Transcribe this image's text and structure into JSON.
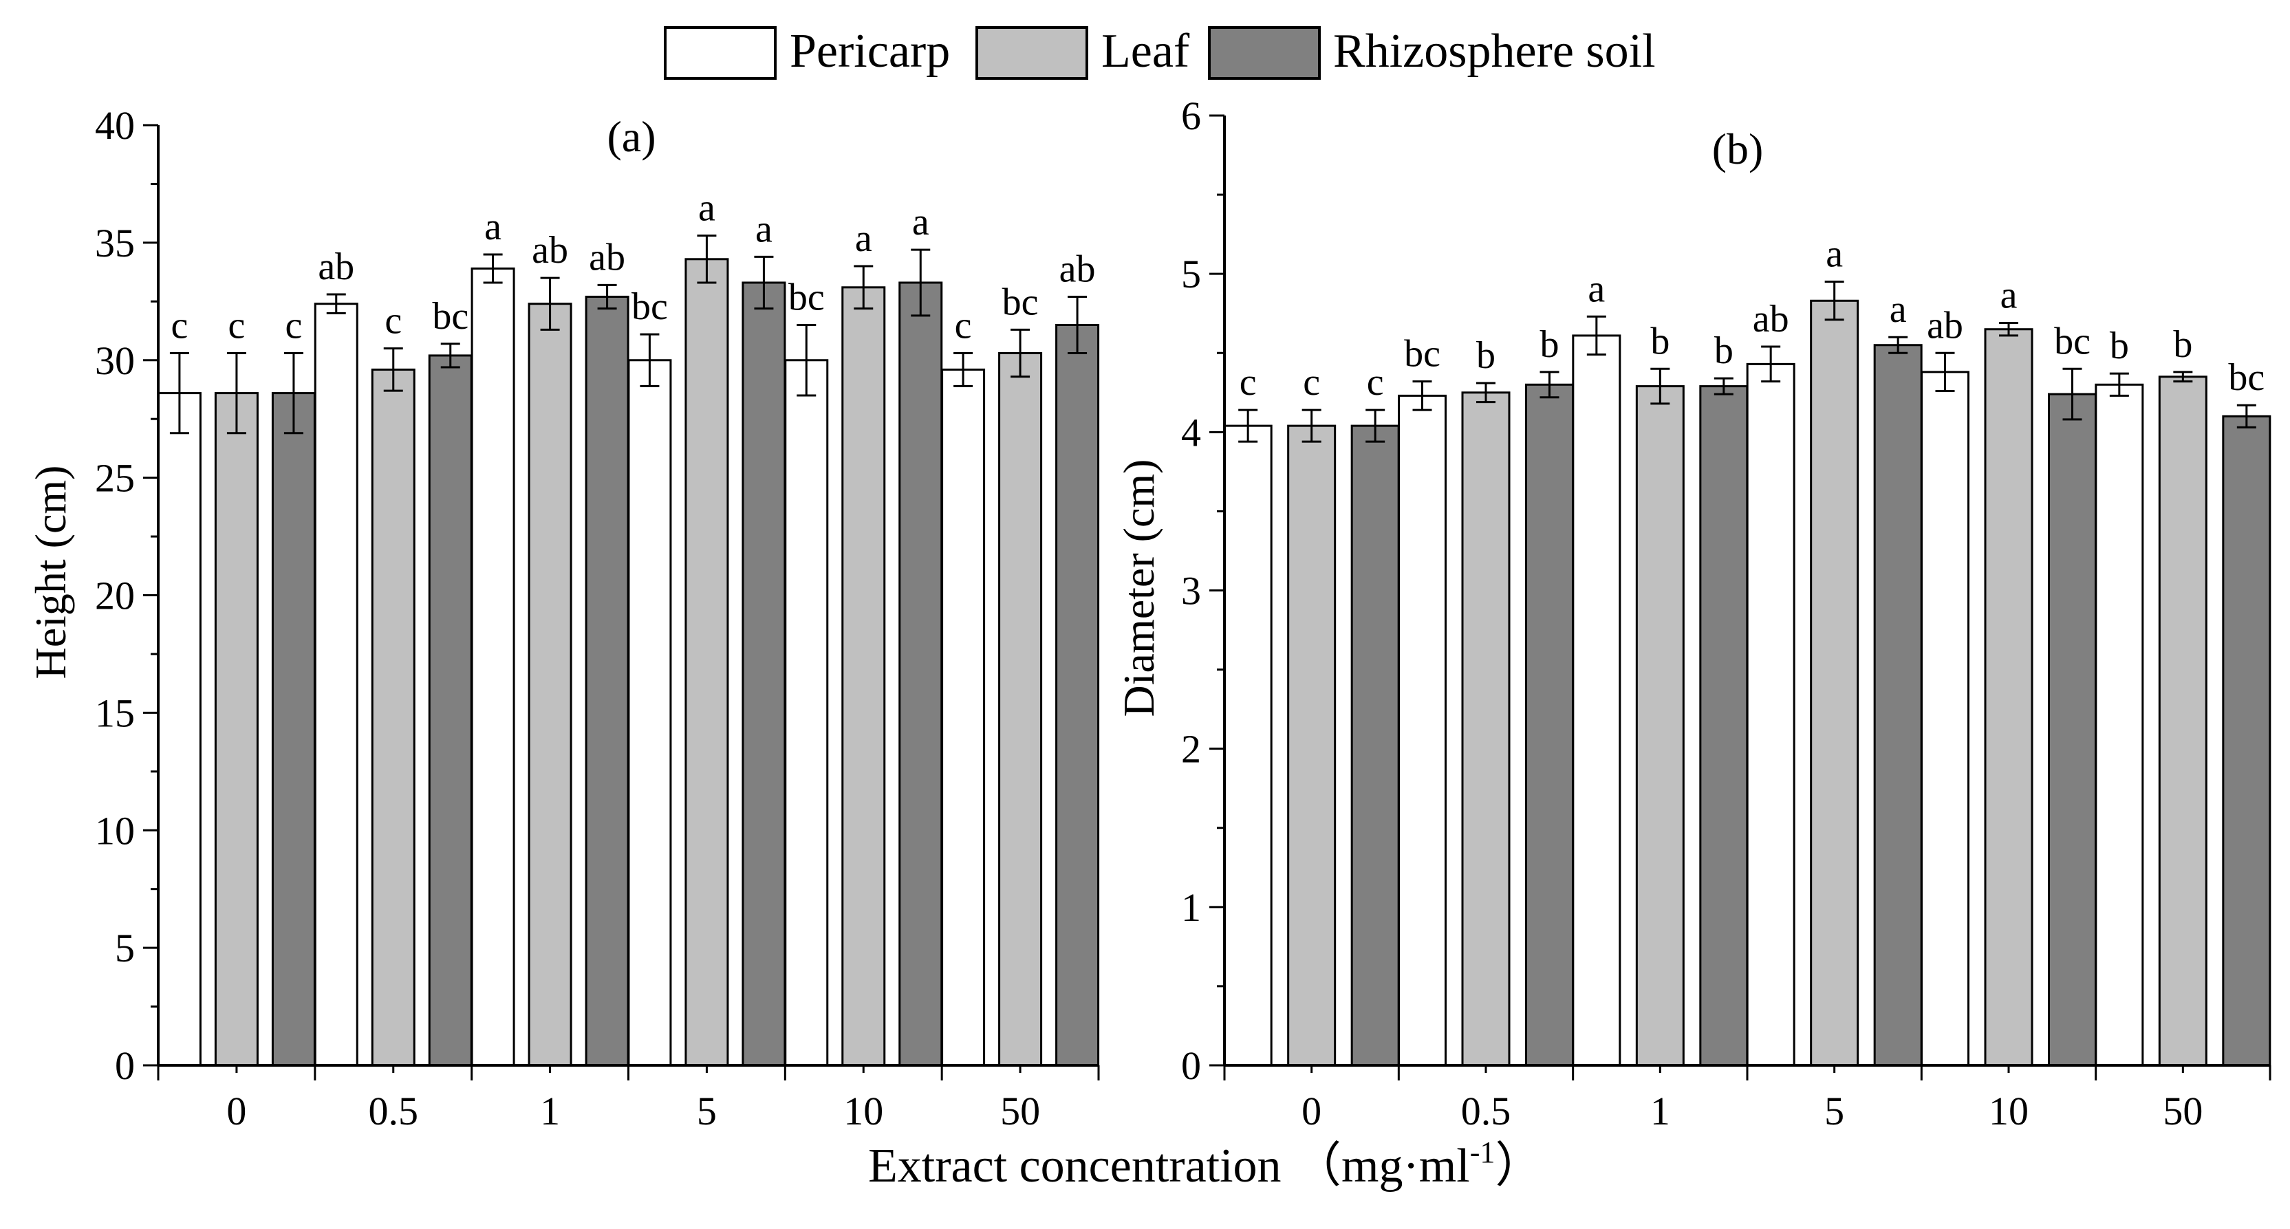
{
  "xlabel": "Extract concentration （mg·ml",
  "xlabel_sup": "-1",
  "xlabel_close": "）",
  "legend": {
    "placement": "top-center",
    "items": [
      {
        "name": "Pericarp",
        "color": "#ffffff"
      },
      {
        "name": "Leaf",
        "color": "#c0c0c0"
      },
      {
        "name": "Rhizosphere soil",
        "color": "#808080"
      }
    ]
  },
  "chart_data": [
    {
      "type": "bar",
      "title": "(a)",
      "xlabel": "Extract concentration (mg·ml-1)",
      "ylabel": "Height (cm)",
      "categories": [
        "0",
        "0.5",
        "1",
        "5",
        "10",
        "50"
      ],
      "ylim": [
        0,
        40
      ],
      "yticks": [
        "0",
        "5",
        "10",
        "15",
        "20",
        "25",
        "30",
        "35",
        "40"
      ],
      "series": [
        {
          "name": "Pericarp",
          "color": "#ffffff",
          "values": [
            28.6,
            32.4,
            33.9,
            30.0,
            30.0,
            29.6
          ],
          "errors": [
            1.7,
            0.4,
            0.6,
            1.1,
            1.5,
            0.7
          ],
          "labels": [
            "c",
            "ab",
            "a",
            "bc",
            "bc",
            "c"
          ]
        },
        {
          "name": "Leaf",
          "color": "#c0c0c0",
          "values": [
            28.6,
            29.6,
            32.4,
            34.3,
            33.1,
            30.3
          ],
          "errors": [
            1.7,
            0.9,
            1.1,
            1.0,
            0.9,
            1.0
          ],
          "labels": [
            "c",
            "c",
            "ab",
            "a",
            "a",
            "bc"
          ]
        },
        {
          "name": "Rhizosphere soil",
          "color": "#808080",
          "values": [
            28.6,
            30.2,
            32.7,
            33.3,
            33.3,
            31.5
          ],
          "errors": [
            1.7,
            0.5,
            0.5,
            1.1,
            1.4,
            1.2
          ],
          "labels": [
            "c",
            "bc",
            "ab",
            "a",
            "a",
            "ab"
          ]
        }
      ]
    },
    {
      "type": "bar",
      "title": "(b)",
      "xlabel": "Extract concentration (mg·ml-1)",
      "ylabel": "Diameter (cm)",
      "categories": [
        "0",
        "0.5",
        "1",
        "5",
        "10",
        "50"
      ],
      "ylim": [
        0,
        6
      ],
      "yticks": [
        "0",
        "1",
        "2",
        "3",
        "4",
        "5",
        "6"
      ],
      "series": [
        {
          "name": "Pericarp",
          "color": "#ffffff",
          "values": [
            4.04,
            4.23,
            4.61,
            4.43,
            4.38,
            4.3
          ],
          "errors": [
            0.1,
            0.09,
            0.12,
            0.11,
            0.12,
            0.07
          ],
          "labels": [
            "c",
            "bc",
            "a",
            "ab",
            "ab",
            "b"
          ]
        },
        {
          "name": "Leaf",
          "color": "#c0c0c0",
          "values": [
            4.04,
            4.25,
            4.29,
            4.83,
            4.65,
            4.35
          ],
          "errors": [
            0.1,
            0.06,
            0.11,
            0.12,
            0.04,
            0.03
          ],
          "labels": [
            "c",
            "b",
            "b",
            "a",
            "a",
            "b"
          ]
        },
        {
          "name": "Rhizosphere soil",
          "color": "#808080",
          "values": [
            4.04,
            4.3,
            4.29,
            4.55,
            4.24,
            4.1
          ],
          "errors": [
            0.1,
            0.08,
            0.05,
            0.05,
            0.16,
            0.07
          ],
          "labels": [
            "c",
            "b",
            "b",
            "a",
            "bc",
            "bc"
          ]
        }
      ]
    }
  ]
}
